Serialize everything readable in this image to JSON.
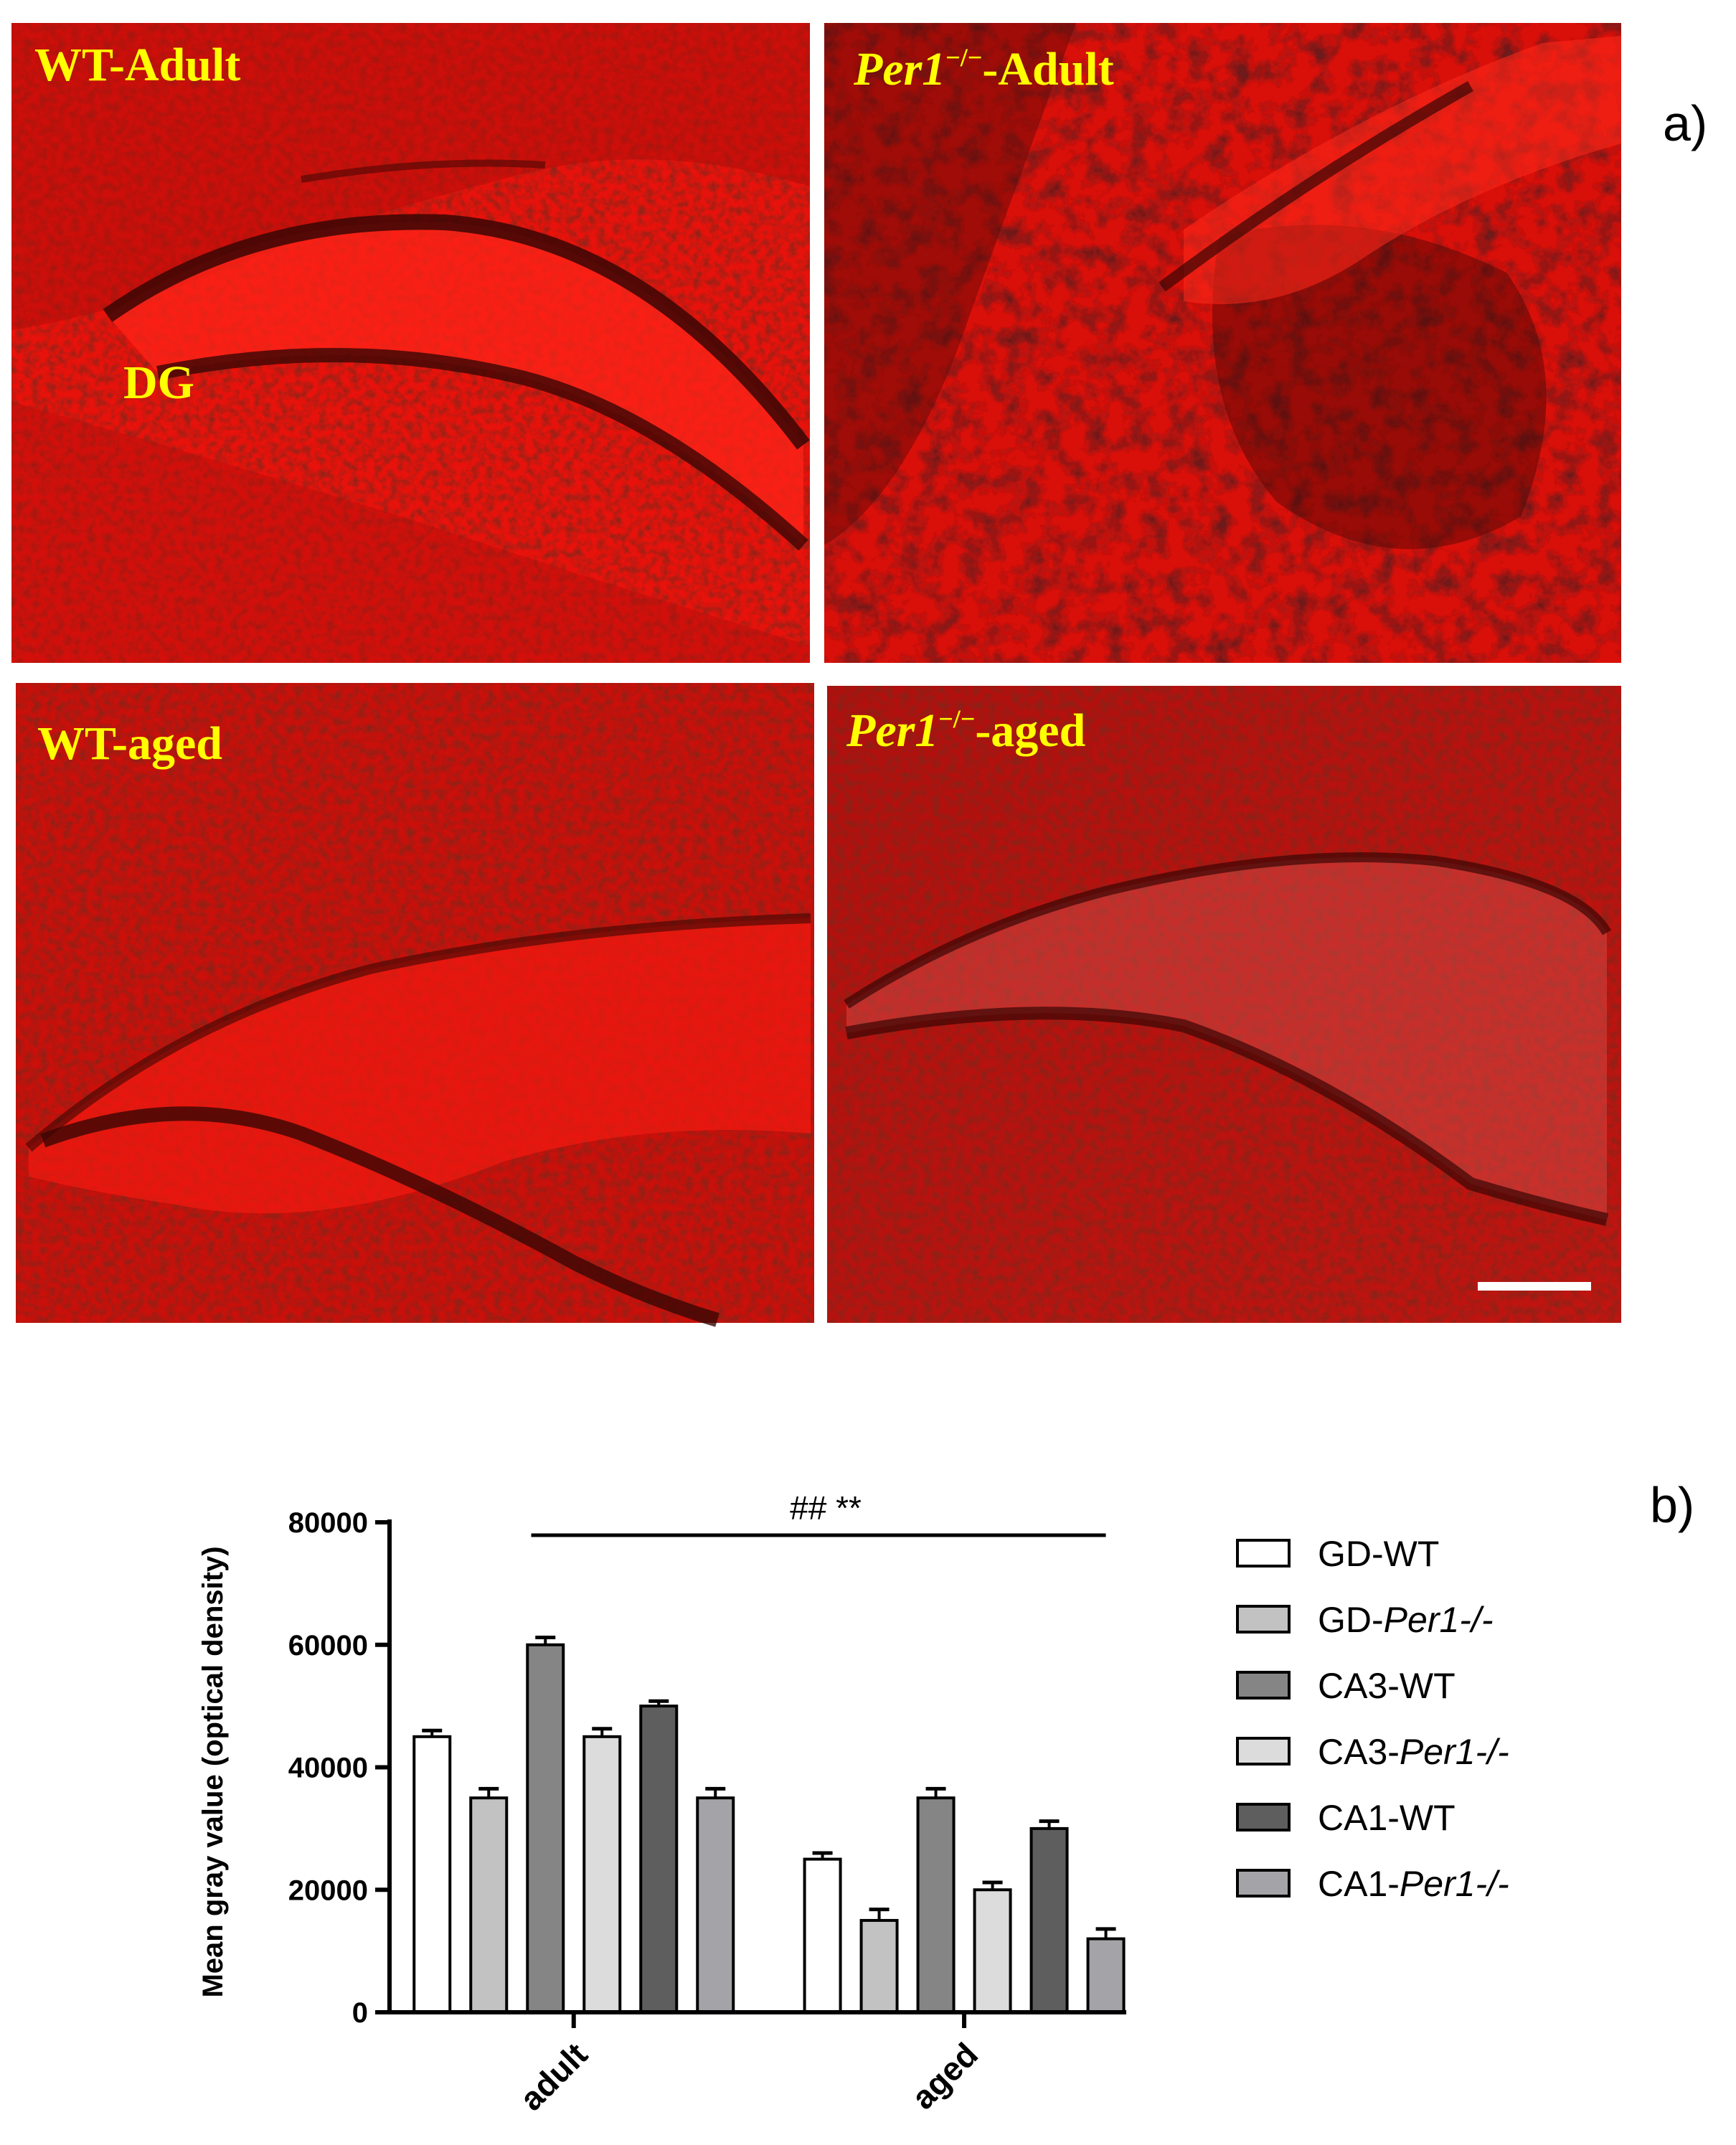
{
  "figure": {
    "panel_a_label": "a)",
    "panel_b_label": "b)"
  },
  "micrographs": [
    {
      "label_parts": [
        {
          "text": "WT-Adult",
          "italic": false
        }
      ],
      "region_label": "DG",
      "style": "bright-layer-wt-adult"
    },
    {
      "label_parts": [
        {
          "text": "Per1",
          "italic": true
        },
        {
          "text": "−/−",
          "sup": true
        },
        {
          "text": "-Adult",
          "italic": false
        }
      ],
      "region_label": "",
      "style": "dark-knockout-adult"
    },
    {
      "label_parts": [
        {
          "text": "WT-aged",
          "italic": false
        }
      ],
      "region_label": "",
      "style": "bright-layer-wt-aged"
    },
    {
      "label_parts": [
        {
          "text": "Per1",
          "italic": true
        },
        {
          "text": "−/−",
          "sup": true
        },
        {
          "text": "-aged",
          "italic": false
        }
      ],
      "region_label": "",
      "style": "dim-knockout-aged",
      "has_scale_bar": true
    }
  ],
  "colors": {
    "stain_red": "#e8120c",
    "stain_dark": "#3a0604",
    "label_yellow": "#ffff00",
    "scale_bar": "#ffffff"
  },
  "chart_data": {
    "type": "bar",
    "title": "",
    "xlabel": "",
    "ylabel": "Mean gray value (optical density)",
    "ylim": [
      0,
      80000
    ],
    "yticks": [
      0,
      20000,
      40000,
      60000,
      80000
    ],
    "ytick_labels": [
      "0",
      "20000",
      "40000",
      "60000",
      "80000"
    ],
    "categories": [
      "adult",
      "aged"
    ],
    "series": [
      {
        "name_parts": [
          {
            "text": "GD-WT",
            "italic": false
          }
        ],
        "values": [
          45000,
          25000
        ],
        "errors": [
          1000,
          1000
        ],
        "color": "#ffffff"
      },
      {
        "name_parts": [
          {
            "text": "GD-",
            "italic": false
          },
          {
            "text": "Per1-/-",
            "italic": true
          }
        ],
        "values": [
          35000,
          15000
        ],
        "errors": [
          1500,
          1800
        ],
        "color": "#c2c2c2"
      },
      {
        "name_parts": [
          {
            "text": "CA3-WT",
            "italic": false
          }
        ],
        "values": [
          60000,
          35000
        ],
        "errors": [
          1200,
          1500
        ],
        "color": "#858585"
      },
      {
        "name_parts": [
          {
            "text": "CA3-",
            "italic": false
          },
          {
            "text": "Per1-/-",
            "italic": true
          }
        ],
        "values": [
          45000,
          20000
        ],
        "errors": [
          1300,
          1200
        ],
        "color": "#dcdcdc"
      },
      {
        "name_parts": [
          {
            "text": "CA1-WT",
            "italic": false
          }
        ],
        "values": [
          50000,
          30000
        ],
        "errors": [
          800,
          1200
        ],
        "color": "#5e5e5e"
      },
      {
        "name_parts": [
          {
            "text": "CA1-",
            "italic": false
          },
          {
            "text": "Per1-/-",
            "italic": true
          }
        ],
        "values": [
          35000,
          12000
        ],
        "errors": [
          1500,
          1600
        ],
        "color": "#a4a4a8"
      }
    ],
    "significance": {
      "text": "## **",
      "span": [
        "adult",
        "aged"
      ]
    },
    "legend_position": "right",
    "grid": false
  }
}
